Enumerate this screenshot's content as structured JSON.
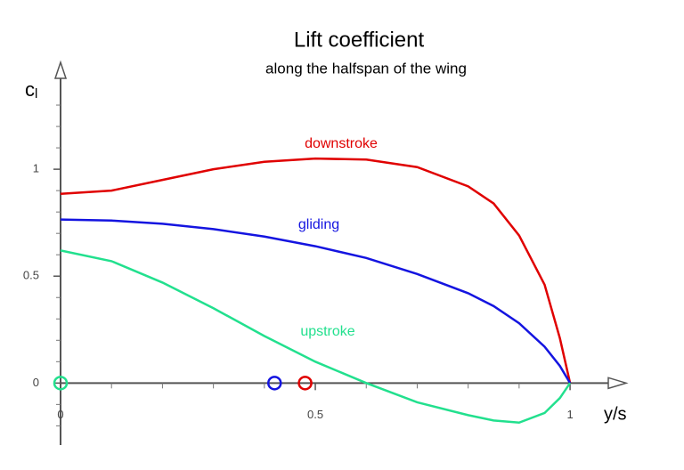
{
  "chart_data": {
    "type": "line",
    "title": "Lift coefficient",
    "subtitle": "along the halfspan of the wing",
    "ylabel": {
      "text": "c",
      "sub": "l"
    },
    "xlabel": "y/s",
    "x": [
      0,
      0.1,
      0.2,
      0.3,
      0.4,
      0.5,
      0.6,
      0.7,
      0.8,
      0.85,
      0.9,
      0.95,
      0.98,
      1.0
    ],
    "series": [
      {
        "name": "downstroke",
        "color": "#e00000",
        "values": [
          0.885,
          0.9,
          0.95,
          1.0,
          1.035,
          1.05,
          1.045,
          1.01,
          0.92,
          0.84,
          0.69,
          0.46,
          0.21,
          0.0
        ],
        "marker_x": 0.48
      },
      {
        "name": "gliding",
        "color": "#1414e0",
        "values": [
          0.765,
          0.76,
          0.745,
          0.72,
          0.685,
          0.64,
          0.585,
          0.51,
          0.42,
          0.36,
          0.28,
          0.17,
          0.08,
          0.0
        ],
        "marker_x": 0.42
      },
      {
        "name": "upstroke",
        "color": "#22e08e",
        "values": [
          0.62,
          0.57,
          0.47,
          0.35,
          0.22,
          0.1,
          0.0,
          -0.09,
          -0.15,
          -0.175,
          -0.185,
          -0.14,
          -0.07,
          0.0
        ],
        "marker_x": 0
      }
    ],
    "xlim": [
      0,
      1.11
    ],
    "ylim": [
      -0.29,
      1.5
    ],
    "xticks": [
      0,
      0.5,
      1
    ],
    "yticks": [
      0,
      0.5,
      1
    ],
    "xminor_ticks": [
      0.1,
      0.2,
      0.3,
      0.4,
      0.6,
      0.7,
      0.8,
      0.9
    ],
    "yminor_ticks": [
      -0.2,
      -0.1,
      0.1,
      0.2,
      0.3,
      0.4,
      0.6,
      0.7,
      0.8,
      0.9,
      1.1,
      1.2,
      1.3
    ]
  }
}
